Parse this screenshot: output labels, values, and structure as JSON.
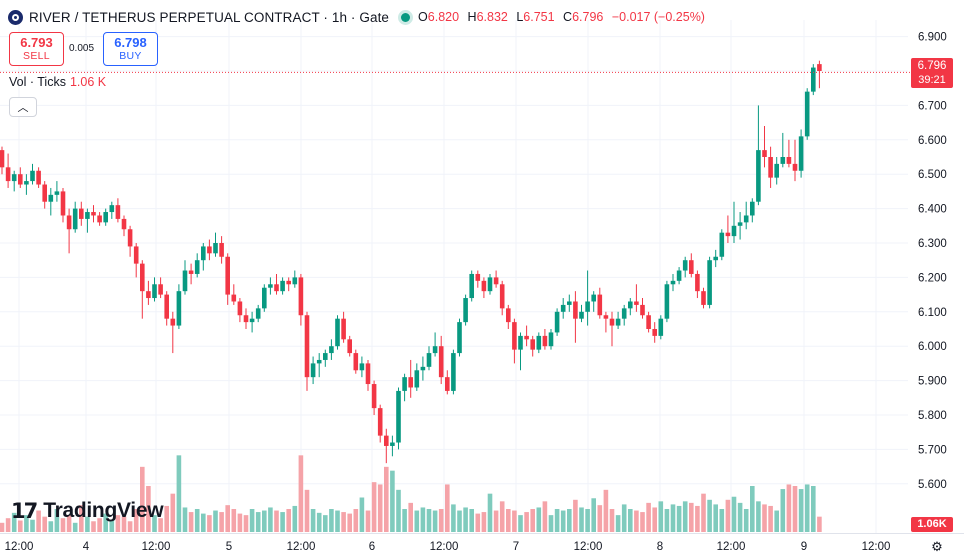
{
  "header": {
    "symbol_title": "RIVER / TETHERUS PERPETUAL CONTRACT · 1h · Gate",
    "ohlc": [
      {
        "key": "O",
        "value": "6.820"
      },
      {
        "key": "H",
        "value": "6.832"
      },
      {
        "key": "L",
        "value": "6.751"
      },
      {
        "key": "C",
        "value": "6.796"
      }
    ],
    "change": "−0.017 (−0.25%)"
  },
  "trade": {
    "sell_price": "6.793",
    "sell_label": "SELL",
    "spread": "0.005",
    "buy_price": "6.798",
    "buy_label": "BUY"
  },
  "volume_legend": {
    "label": "Vol · Ticks",
    "value": "1.06 K"
  },
  "price_axis": {
    "current_price": "6.796",
    "countdown": "39:21",
    "volume_tag": "1.06K"
  },
  "branding": {
    "logo_text": "TradingView"
  },
  "colors": {
    "up": "#089981",
    "down": "#f23645",
    "up_volume": "#7fcbbd",
    "down_volume": "#f5a3a8",
    "grid": "#f0f3fa",
    "text": "#131722"
  },
  "chart_data": {
    "type": "candlestick",
    "ylim": [
      5.5,
      6.95
    ],
    "y_ticks": [
      "6.900",
      "6.800",
      "6.700",
      "6.600",
      "6.500",
      "6.400",
      "6.300",
      "6.200",
      "6.100",
      "6.000",
      "5.900",
      "5.800",
      "5.700",
      "5.600"
    ],
    "x_ticks": [
      "12:00",
      "4",
      "12:00",
      "5",
      "12:00",
      "6",
      "12:00",
      "7",
      "12:00",
      "8",
      "12:00",
      "9",
      "12:00"
    ],
    "grid": true,
    "current_price": 6.796,
    "candles": [
      [
        6.57,
        6.58,
        6.5,
        6.52
      ],
      [
        6.52,
        6.56,
        6.46,
        6.48
      ],
      [
        6.48,
        6.51,
        6.45,
        6.5
      ],
      [
        6.5,
        6.52,
        6.46,
        6.47
      ],
      [
        6.47,
        6.5,
        6.44,
        6.48
      ],
      [
        6.48,
        6.53,
        6.47,
        6.51
      ],
      [
        6.51,
        6.52,
        6.46,
        6.47
      ],
      [
        6.47,
        6.48,
        6.4,
        6.42
      ],
      [
        6.42,
        6.46,
        6.38,
        6.44
      ],
      [
        6.44,
        6.48,
        6.42,
        6.45
      ],
      [
        6.45,
        6.46,
        6.36,
        6.38
      ],
      [
        6.38,
        6.4,
        6.27,
        6.34
      ],
      [
        6.34,
        6.42,
        6.33,
        6.4
      ],
      [
        6.4,
        6.42,
        6.35,
        6.37
      ],
      [
        6.37,
        6.4,
        6.33,
        6.39
      ],
      [
        6.39,
        6.41,
        6.36,
        6.38
      ],
      [
        6.38,
        6.39,
        6.35,
        6.36
      ],
      [
        6.36,
        6.4,
        6.35,
        6.39
      ],
      [
        6.39,
        6.42,
        6.37,
        6.41
      ],
      [
        6.41,
        6.43,
        6.36,
        6.37
      ],
      [
        6.37,
        6.38,
        6.32,
        6.34
      ],
      [
        6.34,
        6.35,
        6.26,
        6.29
      ],
      [
        6.29,
        6.3,
        6.2,
        6.24
      ],
      [
        6.24,
        6.25,
        6.08,
        6.16
      ],
      [
        6.16,
        6.19,
        6.12,
        6.14
      ],
      [
        6.14,
        6.2,
        6.13,
        6.18
      ],
      [
        6.18,
        6.2,
        6.14,
        6.15
      ],
      [
        6.15,
        6.16,
        6.06,
        6.08
      ],
      [
        6.08,
        6.1,
        5.98,
        6.06
      ],
      [
        6.06,
        6.18,
        6.05,
        6.16
      ],
      [
        6.16,
        6.25,
        6.15,
        6.22
      ],
      [
        6.22,
        6.24,
        6.18,
        6.21
      ],
      [
        6.21,
        6.27,
        6.2,
        6.25
      ],
      [
        6.25,
        6.3,
        6.22,
        6.29
      ],
      [
        6.29,
        6.31,
        6.25,
        6.27
      ],
      [
        6.27,
        6.33,
        6.26,
        6.3
      ],
      [
        6.3,
        6.32,
        6.24,
        6.26
      ],
      [
        6.26,
        6.27,
        6.12,
        6.15
      ],
      [
        6.15,
        6.18,
        6.12,
        6.13
      ],
      [
        6.13,
        6.14,
        6.07,
        6.09
      ],
      [
        6.09,
        6.11,
        6.05,
        6.07
      ],
      [
        6.07,
        6.1,
        6.04,
        6.08
      ],
      [
        6.08,
        6.12,
        6.07,
        6.11
      ],
      [
        6.11,
        6.18,
        6.1,
        6.17
      ],
      [
        6.17,
        6.2,
        6.15,
        6.18
      ],
      [
        6.18,
        6.21,
        6.15,
        6.16
      ],
      [
        6.16,
        6.2,
        6.15,
        6.19
      ],
      [
        6.19,
        6.2,
        6.16,
        6.18
      ],
      [
        6.18,
        6.22,
        6.17,
        6.2
      ],
      [
        6.2,
        6.21,
        6.06,
        6.09
      ],
      [
        6.09,
        6.1,
        5.87,
        5.91
      ],
      [
        5.91,
        5.97,
        5.89,
        5.95
      ],
      [
        5.95,
        5.98,
        5.91,
        5.96
      ],
      [
        5.96,
        5.99,
        5.94,
        5.98
      ],
      [
        5.98,
        6.02,
        5.96,
        6.0
      ],
      [
        6.0,
        6.09,
        5.99,
        6.08
      ],
      [
        6.08,
        6.1,
        6.01,
        6.02
      ],
      [
        6.02,
        6.03,
        5.97,
        5.98
      ],
      [
        5.98,
        5.99,
        5.92,
        5.93
      ],
      [
        5.93,
        5.97,
        5.91,
        5.95
      ],
      [
        5.95,
        5.96,
        5.87,
        5.89
      ],
      [
        5.89,
        5.9,
        5.8,
        5.82
      ],
      [
        5.82,
        5.83,
        5.72,
        5.74
      ],
      [
        5.74,
        5.76,
        5.66,
        5.71
      ],
      [
        5.71,
        5.74,
        5.68,
        5.72
      ],
      [
        5.72,
        5.88,
        5.7,
        5.87
      ],
      [
        5.87,
        5.92,
        5.84,
        5.91
      ],
      [
        5.91,
        5.96,
        5.85,
        5.88
      ],
      [
        5.88,
        5.95,
        5.87,
        5.93
      ],
      [
        5.93,
        5.97,
        5.9,
        5.94
      ],
      [
        5.94,
        6.0,
        5.93,
        5.98
      ],
      [
        5.98,
        6.04,
        5.97,
        6.0
      ],
      [
        6.0,
        6.03,
        5.89,
        5.91
      ],
      [
        5.91,
        5.93,
        5.86,
        5.87
      ],
      [
        5.87,
        5.99,
        5.86,
        5.98
      ],
      [
        5.98,
        6.08,
        5.97,
        6.07
      ],
      [
        6.07,
        6.15,
        6.06,
        6.14
      ],
      [
        6.14,
        6.22,
        6.13,
        6.21
      ],
      [
        6.21,
        6.22,
        6.17,
        6.19
      ],
      [
        6.19,
        6.2,
        6.14,
        6.16
      ],
      [
        6.16,
        6.21,
        6.15,
        6.2
      ],
      [
        6.2,
        6.22,
        6.17,
        6.18
      ],
      [
        6.18,
        6.19,
        6.09,
        6.11
      ],
      [
        6.11,
        6.12,
        6.05,
        6.07
      ],
      [
        6.07,
        6.08,
        5.95,
        5.99
      ],
      [
        5.99,
        6.04,
        5.93,
        6.03
      ],
      [
        6.03,
        6.06,
        6.0,
        6.02
      ],
      [
        6.02,
        6.03,
        5.97,
        5.99
      ],
      [
        5.99,
        6.04,
        5.98,
        6.03
      ],
      [
        6.03,
        6.05,
        5.99,
        6.0
      ],
      [
        6.0,
        6.05,
        5.99,
        6.04
      ],
      [
        6.04,
        6.11,
        6.03,
        6.1
      ],
      [
        6.1,
        6.14,
        6.08,
        6.12
      ],
      [
        6.12,
        6.15,
        6.1,
        6.13
      ],
      [
        6.13,
        6.16,
        6.01,
        6.08
      ],
      [
        6.08,
        6.12,
        6.07,
        6.1
      ],
      [
        6.1,
        6.22,
        6.06,
        6.13
      ],
      [
        6.13,
        6.16,
        6.1,
        6.15
      ],
      [
        6.15,
        6.17,
        6.08,
        6.09
      ],
      [
        6.09,
        6.1,
        6.04,
        6.08
      ],
      [
        6.08,
        6.1,
        6.0,
        6.06
      ],
      [
        6.06,
        6.1,
        6.05,
        6.08
      ],
      [
        6.08,
        6.12,
        6.06,
        6.11
      ],
      [
        6.11,
        6.14,
        6.09,
        6.13
      ],
      [
        6.13,
        6.18,
        6.1,
        6.12
      ],
      [
        6.12,
        6.14,
        6.08,
        6.09
      ],
      [
        6.09,
        6.1,
        6.04,
        6.05
      ],
      [
        6.05,
        6.07,
        6.01,
        6.03
      ],
      [
        6.03,
        6.09,
        6.02,
        6.08
      ],
      [
        6.08,
        6.19,
        6.07,
        6.18
      ],
      [
        6.18,
        6.21,
        6.16,
        6.19
      ],
      [
        6.19,
        6.23,
        6.18,
        6.22
      ],
      [
        6.22,
        6.26,
        6.2,
        6.25
      ],
      [
        6.25,
        6.27,
        6.2,
        6.21
      ],
      [
        6.21,
        6.22,
        6.14,
        6.16
      ],
      [
        6.16,
        6.17,
        6.11,
        6.12
      ],
      [
        6.12,
        6.26,
        6.11,
        6.25
      ],
      [
        6.25,
        6.28,
        6.23,
        6.26
      ],
      [
        6.26,
        6.34,
        6.25,
        6.33
      ],
      [
        6.33,
        6.38,
        6.3,
        6.32
      ],
      [
        6.32,
        6.42,
        6.3,
        6.35
      ],
      [
        6.35,
        6.39,
        6.31,
        6.36
      ],
      [
        6.36,
        6.42,
        6.34,
        6.38
      ],
      [
        6.38,
        6.43,
        6.36,
        6.42
      ],
      [
        6.42,
        6.7,
        6.41,
        6.57
      ],
      [
        6.57,
        6.64,
        6.52,
        6.55
      ],
      [
        6.55,
        6.58,
        6.46,
        6.49
      ],
      [
        6.49,
        6.55,
        6.47,
        6.53
      ],
      [
        6.53,
        6.62,
        6.52,
        6.55
      ],
      [
        6.55,
        6.6,
        6.52,
        6.53
      ],
      [
        6.53,
        6.6,
        6.48,
        6.51
      ],
      [
        6.51,
        6.63,
        6.49,
        6.61
      ],
      [
        6.61,
        6.75,
        6.6,
        6.74
      ],
      [
        6.74,
        6.82,
        6.73,
        6.81
      ],
      [
        6.82,
        6.83,
        6.75,
        6.8
      ]
    ],
    "volume_max": 1.2,
    "volumes": [
      0.12,
      0.18,
      0.25,
      0.15,
      0.22,
      0.16,
      0.28,
      0.2,
      0.14,
      0.3,
      0.18,
      0.22,
      0.12,
      0.35,
      0.2,
      0.14,
      0.18,
      0.24,
      0.16,
      0.22,
      0.2,
      0.14,
      0.3,
      0.85,
      0.6,
      0.22,
      0.18,
      0.34,
      0.5,
      1.0,
      0.32,
      0.26,
      0.3,
      0.24,
      0.22,
      0.28,
      0.26,
      0.35,
      0.3,
      0.24,
      0.22,
      0.3,
      0.26,
      0.28,
      0.32,
      0.28,
      0.26,
      0.3,
      0.34,
      1.0,
      0.55,
      0.3,
      0.25,
      0.22,
      0.3,
      0.28,
      0.26,
      0.24,
      0.3,
      0.45,
      0.28,
      0.65,
      0.62,
      0.85,
      0.8,
      0.55,
      0.3,
      0.38,
      0.28,
      0.32,
      0.3,
      0.28,
      0.3,
      0.62,
      0.36,
      0.28,
      0.32,
      0.3,
      0.24,
      0.26,
      0.5,
      0.28,
      0.4,
      0.3,
      0.28,
      0.22,
      0.26,
      0.3,
      0.32,
      0.4,
      0.22,
      0.3,
      0.28,
      0.3,
      0.42,
      0.32,
      0.3,
      0.44,
      0.35,
      0.55,
      0.3,
      0.22,
      0.36,
      0.3,
      0.28,
      0.26,
      0.38,
      0.32,
      0.4,
      0.3,
      0.36,
      0.34,
      0.4,
      0.38,
      0.34,
      0.5,
      0.42,
      0.36,
      0.3,
      0.42,
      0.46,
      0.38,
      0.3,
      0.6,
      0.4,
      0.36,
      0.34,
      0.28,
      0.56,
      0.62,
      0.6,
      0.56,
      0.62,
      0.6,
      0.2
    ]
  }
}
